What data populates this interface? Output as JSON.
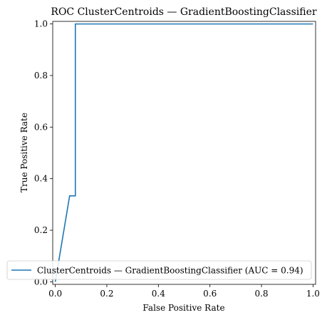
{
  "chart_data": {
    "type": "line",
    "title": "ROC ClusterCentroids — GradientBoostingClassifier",
    "xlabel": "False Positive Rate",
    "ylabel": "True Positive Rate",
    "xlim": [
      -0.01,
      1.01
    ],
    "ylim": [
      -0.01,
      1.01
    ],
    "xticks": [
      "0.0",
      "0.2",
      "0.4",
      "0.6",
      "0.8",
      "1.0"
    ],
    "yticks": [
      "0.0",
      "0.2",
      "0.4",
      "0.6",
      "0.8",
      "1.0"
    ],
    "grid": false,
    "legend_position": "lower-right",
    "series": [
      {
        "name": "ClusterCentroids — GradientBoostingClassifier (AUC = 0.94)",
        "color": "#1f77b4",
        "x": [
          0.0,
          0.0,
          0.0556,
          0.0778,
          0.0778,
          1.0
        ],
        "y": [
          0.0,
          0.0,
          0.3333,
          0.3333,
          1.0,
          1.0
        ]
      }
    ]
  }
}
